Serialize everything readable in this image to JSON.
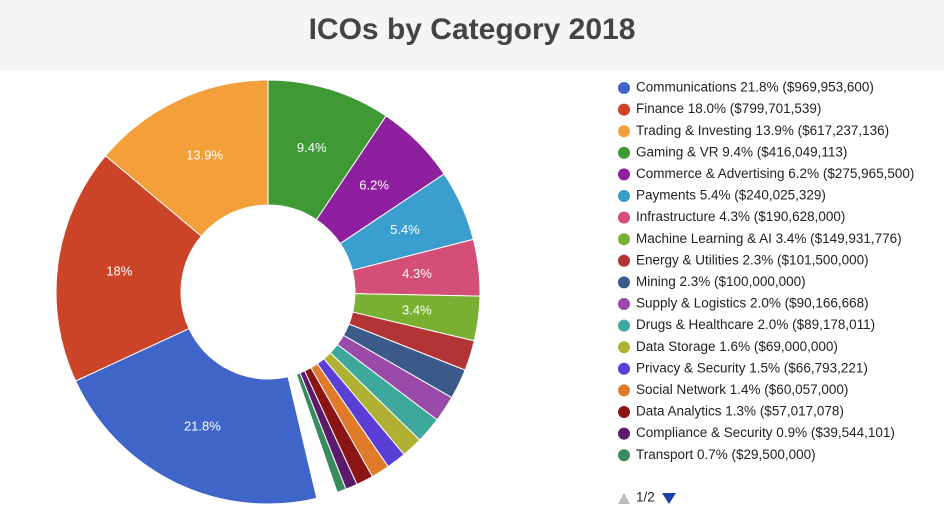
{
  "chart_data": {
    "type": "donut",
    "title": "ICOs by Category 2018",
    "labels": [
      "Communications 21.8% ($969,953,600)",
      "Finance 18.0% ($799,701,539)",
      "Trading & Investing 13.9% ($617,237,136)",
      "Gaming & VR 9.4% ($416,049,113)",
      "Commerce & Advertising 6.2% ($275,965,500)",
      "Payments 5.4% ($240,025,329)",
      "Infrastructure 4.3% ($190,628,000)",
      "Machine Learning & AI 3.4% ($149,931,776)",
      "Energy & Utilities 2.3% ($101,500,000)",
      "Mining 2.3% ($100,000,000)",
      "Supply & Logistics 2.0% ($90,166,668)",
      "Drugs & Healthcare 2.0% ($89,178,011)",
      "Data Storage 1.6% ($69,000,000)",
      "Privacy & Security 1.5% ($66,793,221)",
      "Social Network 1.4% ($60,057,000)",
      "Data Analytics 1.3% ($57,017,078)",
      "Compliance & Security 0.9% ($39,544,101)",
      "Transport 0.7% ($29,500,000)"
    ],
    "values": [
      21.8,
      18.0,
      13.9,
      9.4,
      6.2,
      5.4,
      4.3,
      3.4,
      2.3,
      2.3,
      2.0,
      2.0,
      1.6,
      1.5,
      1.4,
      1.3,
      0.9,
      0.7
    ],
    "value_labels": [
      "21.8%",
      "18%",
      "13.9%",
      "9.4%",
      "6.2%",
      "5.4%",
      "4.3%",
      "3.4%",
      null,
      null,
      null,
      null,
      null,
      null,
      null,
      null,
      null,
      null
    ],
    "colors": [
      "#3f65c8",
      "#cc4427",
      "#f4a03a",
      "#3f9a36",
      "#8e1f9e",
      "#3a9fcf",
      "#d44f78",
      "#7ab032",
      "#b33434",
      "#3b5a8a",
      "#9a4aa8",
      "#3fa89c",
      "#b0b035",
      "#5a3fd6",
      "#e07b2a",
      "#8b1414",
      "#5c1a6b",
      "#3a8a5f"
    ],
    "legend_page": "1/2"
  }
}
